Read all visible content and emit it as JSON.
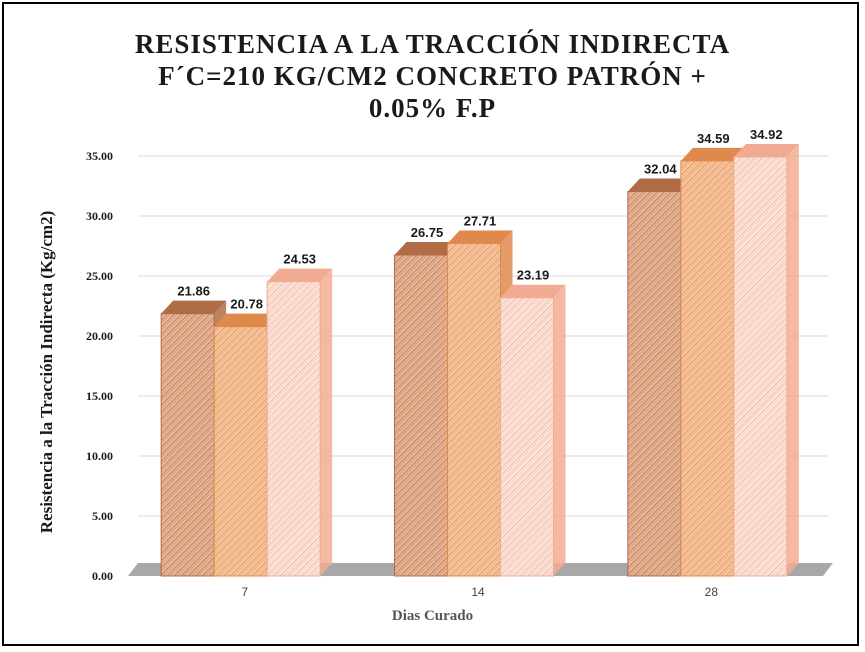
{
  "chart_data": {
    "type": "bar",
    "title": [
      "RESISTENCIA A LA TRACCIÓN INDIRECTA",
      "F´C=210 KG/CM2 CONCRETO PATRÓN +",
      "0.05% F.P"
    ],
    "xlabel": "Dias Curado",
    "ylabel": "Resistencia a la Tracción Indirecta (Kg/cm2)",
    "categories": [
      "7",
      "14",
      "28"
    ],
    "ylim": [
      0,
      35
    ],
    "yticks": [
      "0.00",
      "5.00",
      "10.00",
      "15.00",
      "20.00",
      "25.00",
      "30.00",
      "35.00"
    ],
    "grid": true,
    "legend": "none",
    "series": [
      {
        "values": [
          21.86,
          26.75,
          32.04
        ],
        "labels": [
          "21.86",
          "26.75",
          "32.04"
        ],
        "color": "#e8b89a",
        "hatch": "#b06c45"
      },
      {
        "values": [
          20.78,
          27.71,
          34.59
        ],
        "labels": [
          "20.78",
          "27.71",
          "34.59"
        ],
        "color": "#f5c7a0",
        "hatch": "#e0894d"
      },
      {
        "values": [
          24.53,
          23.19,
          34.92
        ],
        "labels": [
          "24.53",
          "23.19",
          "34.92"
        ],
        "color": "#fbe6dc",
        "hatch": "#f2ab93"
      }
    ]
  }
}
